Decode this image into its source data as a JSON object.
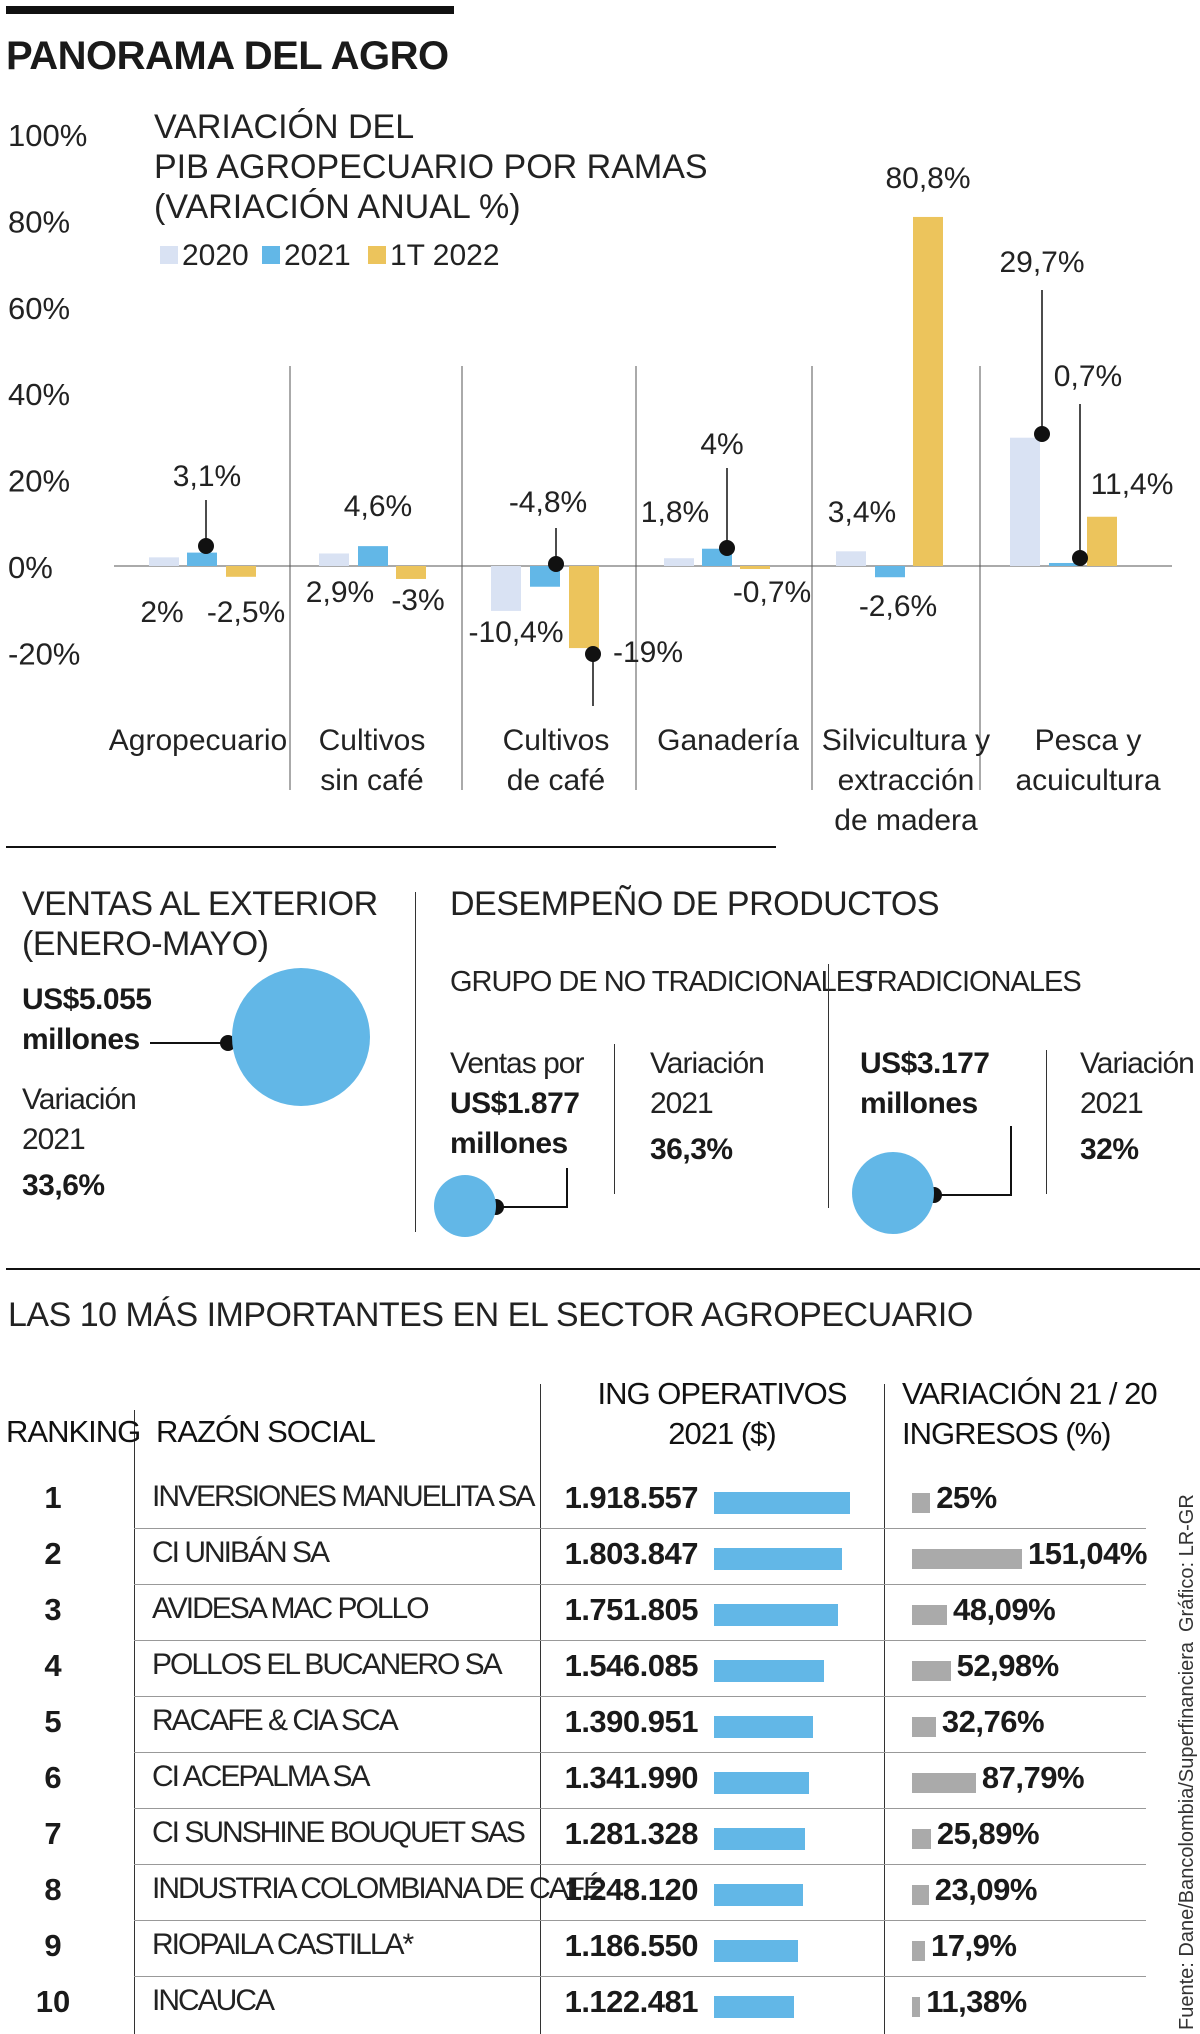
{
  "title": "PANORAMA DEL AGRO",
  "chart_data": {
    "type": "bar",
    "title": "VARIACIÓN DEL PIB AGROPECUARIO POR RAMAS (VARIACIÓN ANUAL %)",
    "title_lines": [
      "VARIACIÓN DEL",
      "PIB AGROPECUARIO POR RAMAS",
      "(VARIACIÓN ANUAL %)"
    ],
    "ylim": [
      -20,
      100
    ],
    "yticks": [
      100,
      80,
      60,
      40,
      20,
      0,
      -20
    ],
    "ytick_labels": [
      "100%",
      "80%",
      "60%",
      "40%",
      "20%",
      "0%",
      "-20%"
    ],
    "categories": [
      [
        "Agropecuario"
      ],
      [
        "Cultivos",
        "sin café"
      ],
      [
        "Cultivos",
        "de café"
      ],
      [
        "Ganadería"
      ],
      [
        "Silvicultura y",
        "extracción",
        "de madera"
      ],
      [
        "Pesca y",
        "acuicultura"
      ]
    ],
    "series": [
      {
        "name": "2020",
        "color": "#d9e2f3",
        "values": [
          2,
          2.9,
          -10.4,
          1.8,
          3.4,
          29.7
        ],
        "labels": [
          "2%",
          "2,9%",
          "-10,4%",
          "1,8%",
          "3,4%",
          "29,7%"
        ]
      },
      {
        "name": "2021",
        "color": "#62b7e7",
        "values": [
          3.1,
          4.6,
          -4.8,
          4,
          -2.6,
          0.7
        ],
        "labels": [
          "3,1%",
          "4,6%",
          "-4,8%",
          "4%",
          "-2,6%",
          "0,7%"
        ]
      },
      {
        "name": "1T 2022",
        "color": "#ecc45c",
        "values": [
          -2.5,
          -3,
          -19,
          -0.7,
          80.8,
          11.4
        ],
        "labels": [
          "-2,5%",
          "-3%",
          "-19%",
          "-0,7%",
          "80,8%",
          "11,4%"
        ]
      }
    ]
  },
  "exterior": {
    "heading": [
      "VENTAS AL EXTERIOR",
      "(ENERO-MAYO)"
    ],
    "value": [
      "US$5.055",
      "millones"
    ],
    "variation_label": [
      "Variación",
      "2021"
    ],
    "variation_value": "33,6%"
  },
  "desempeno": {
    "heading": "DESEMPEÑO DE PRODUCTOS",
    "no_trad": {
      "heading": "GRUPO DE NO TRADICIONALES",
      "sales_label": "Ventas por",
      "sales_value": [
        "US$1.877",
        "millones"
      ],
      "variation_label": [
        "Variación",
        "2021"
      ],
      "variation_value": "36,3%"
    },
    "trad": {
      "heading": "TRADICIONALES",
      "sales_value": [
        "US$3.177",
        "millones"
      ],
      "variation_label": [
        "Variación",
        "2021"
      ],
      "variation_value": "32%"
    }
  },
  "table": {
    "heading": "LAS 10 MÁS IMPORTANTES EN EL SECTOR AGROPECUARIO",
    "col_ranking": "RANKING",
    "col_razon": "RAZÓN SOCIAL",
    "col_ing": [
      "ING OPERATIVOS",
      "2021 ($)"
    ],
    "col_var": [
      "VARIACIÓN 21 / 20",
      "INGRESOS (%)"
    ],
    "rows": [
      {
        "rank": "1",
        "name": "INVERSIONES MANUELITA SA",
        "ing": "1.918.557",
        "ing_value": 1918557,
        "var": "25%",
        "var_value": 25
      },
      {
        "rank": "2",
        "name": "CI UNIBÁN SA",
        "ing": "1.803.847",
        "ing_value": 1803847,
        "var": "151,04%",
        "var_value": 151.04
      },
      {
        "rank": "3",
        "name": "AVIDESA MAC POLLO",
        "ing": "1.751.805",
        "ing_value": 1751805,
        "var": "48,09%",
        "var_value": 48.09
      },
      {
        "rank": "4",
        "name": "POLLOS EL BUCANERO SA",
        "ing": "1.546.085",
        "ing_value": 1546085,
        "var": "52,98%",
        "var_value": 52.98
      },
      {
        "rank": "5",
        "name": "RACAFE & CIA SCA",
        "ing": "1.390.951",
        "ing_value": 1390951,
        "var": "32,76%",
        "var_value": 32.76
      },
      {
        "rank": "6",
        "name": "CI ACEPALMA SA",
        "ing": "1.341.990",
        "ing_value": 1341990,
        "var": "87,79%",
        "var_value": 87.79
      },
      {
        "rank": "7",
        "name": "CI SUNSHINE BOUQUET SAS",
        "ing": "1.281.328",
        "ing_value": 1281328,
        "var": "25,89%",
        "var_value": 25.89
      },
      {
        "rank": "8",
        "name": "INDUSTRIA COLOMBIANA DE CAFÉ",
        "ing": "1.248.120",
        "ing_value": 1248120,
        "var": "23,09%",
        "var_value": 23.09
      },
      {
        "rank": "9",
        "name": "RIOPAILA CASTILLA*",
        "ing": "1.186.550",
        "ing_value": 1186550,
        "var": "17,9%",
        "var_value": 17.9
      },
      {
        "rank": "10",
        "name": "INCAUCA",
        "ing": "1.122.481",
        "ing_value": 1122481,
        "var": "11,38%",
        "var_value": 11.38
      }
    ]
  },
  "credits": {
    "grafico": "Gráfico: LR-GR",
    "fuente": "Fuente: Dane/Bancolombia/Superfinanciera"
  }
}
